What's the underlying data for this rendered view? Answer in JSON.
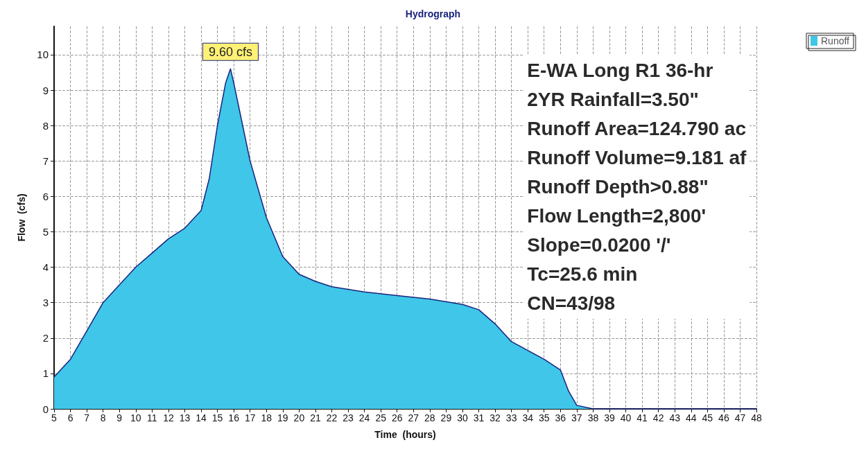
{
  "chart_data": {
    "type": "area",
    "title": "Hydrograph",
    "xlabel": "Time  (hours)",
    "ylabel": "Flow  (cfs)",
    "x": [
      5,
      6,
      7,
      8,
      9,
      10,
      11,
      12,
      13,
      14,
      14.5,
      15,
      15.5,
      15.8,
      16,
      17,
      18,
      19,
      20,
      21,
      22,
      24,
      26,
      28,
      30,
      31,
      32,
      33,
      34,
      35,
      36,
      36.5,
      37,
      38,
      48
    ],
    "series": [
      {
        "name": "Runoff",
        "color": "#3fc6e8",
        "values": [
          0.9,
          1.4,
          2.2,
          3.0,
          3.5,
          4.0,
          4.4,
          4.8,
          5.1,
          5.6,
          6.5,
          8.0,
          9.2,
          9.6,
          9.2,
          7.0,
          5.4,
          4.3,
          3.8,
          3.6,
          3.45,
          3.3,
          3.2,
          3.1,
          2.95,
          2.8,
          2.4,
          1.9,
          1.65,
          1.4,
          1.1,
          0.5,
          0.1,
          0,
          0
        ]
      }
    ],
    "xlim": [
      5,
      48
    ],
    "xticks": [
      5,
      6,
      7,
      8,
      9,
      10,
      11,
      12,
      13,
      14,
      15,
      16,
      17,
      18,
      19,
      20,
      21,
      22,
      23,
      24,
      25,
      26,
      27,
      28,
      29,
      30,
      31,
      32,
      33,
      34,
      35,
      36,
      37,
      38,
      39,
      40,
      41,
      42,
      43,
      44,
      45,
      46,
      47,
      48
    ],
    "ylim": [
      0,
      10.8
    ],
    "yticks": [
      0,
      1,
      2,
      3,
      4,
      5,
      6,
      7,
      8,
      9,
      10
    ],
    "grid": true,
    "legend": "top right",
    "line_style": "solid",
    "annotations": [
      {
        "text": "9.60 cfs",
        "x": 15.8,
        "y": 9.6
      },
      "E-WA Long R1 36-hr",
      "2YR Rainfall=3.50\"",
      "Runoff Area=124.790 ac",
      "Runoff Volume=9.181 af",
      "Runoff Depth>0.88\"",
      "Flow Length=2,800'",
      "Slope=0.0200 '/'",
      "Tc=25.6 min",
      "CN=43/98"
    ]
  }
}
